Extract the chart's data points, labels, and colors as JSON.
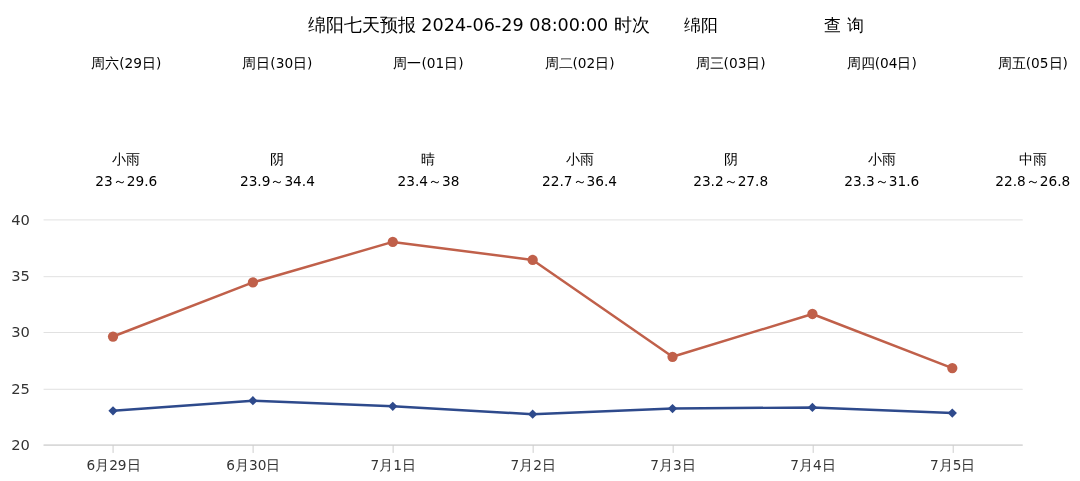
{
  "chart_data": [
    {
      "type": "other",
      "title": "绵阳七天预报 2024-06-29 08:00:00 时次",
      "annotations": [
        "绵阳",
        "查 询",
        "周六(29日)",
        "小雨",
        "23～29.6",
        "周日(30日)",
        "阴",
        "23.9～34.4",
        "周一(01日)",
        "晴",
        "23.4～38",
        "周二(02日)",
        "小雨",
        "22.7～36.4",
        "周三(03日)",
        "阴",
        "23.2～27.8",
        "周四(04日)",
        "小雨",
        "23.3～31.6",
        "周五(05日)",
        "中雨",
        "22.8～26.8"
      ]
    },
    {
      "type": "line",
      "categories": [
        "6月29日",
        "6月30日",
        "7月1日",
        "7月2日",
        "7月3日",
        "7月4日",
        "7月5日"
      ],
      "series": [
        {
          "color": "#c0604a",
          "marker": "circle",
          "values": [
            29.6,
            34.4,
            38,
            36.4,
            27.8,
            31.6,
            26.8
          ]
        },
        {
          "color": "#2e4a8c",
          "marker": "diamond",
          "values": [
            23,
            23.9,
            23.4,
            22.7,
            23.2,
            23.3,
            22.8
          ]
        }
      ],
      "ylim": [
        20,
        40
      ],
      "yticks": [
        20,
        25,
        30,
        35,
        40
      ],
      "grid": "y"
    }
  ]
}
